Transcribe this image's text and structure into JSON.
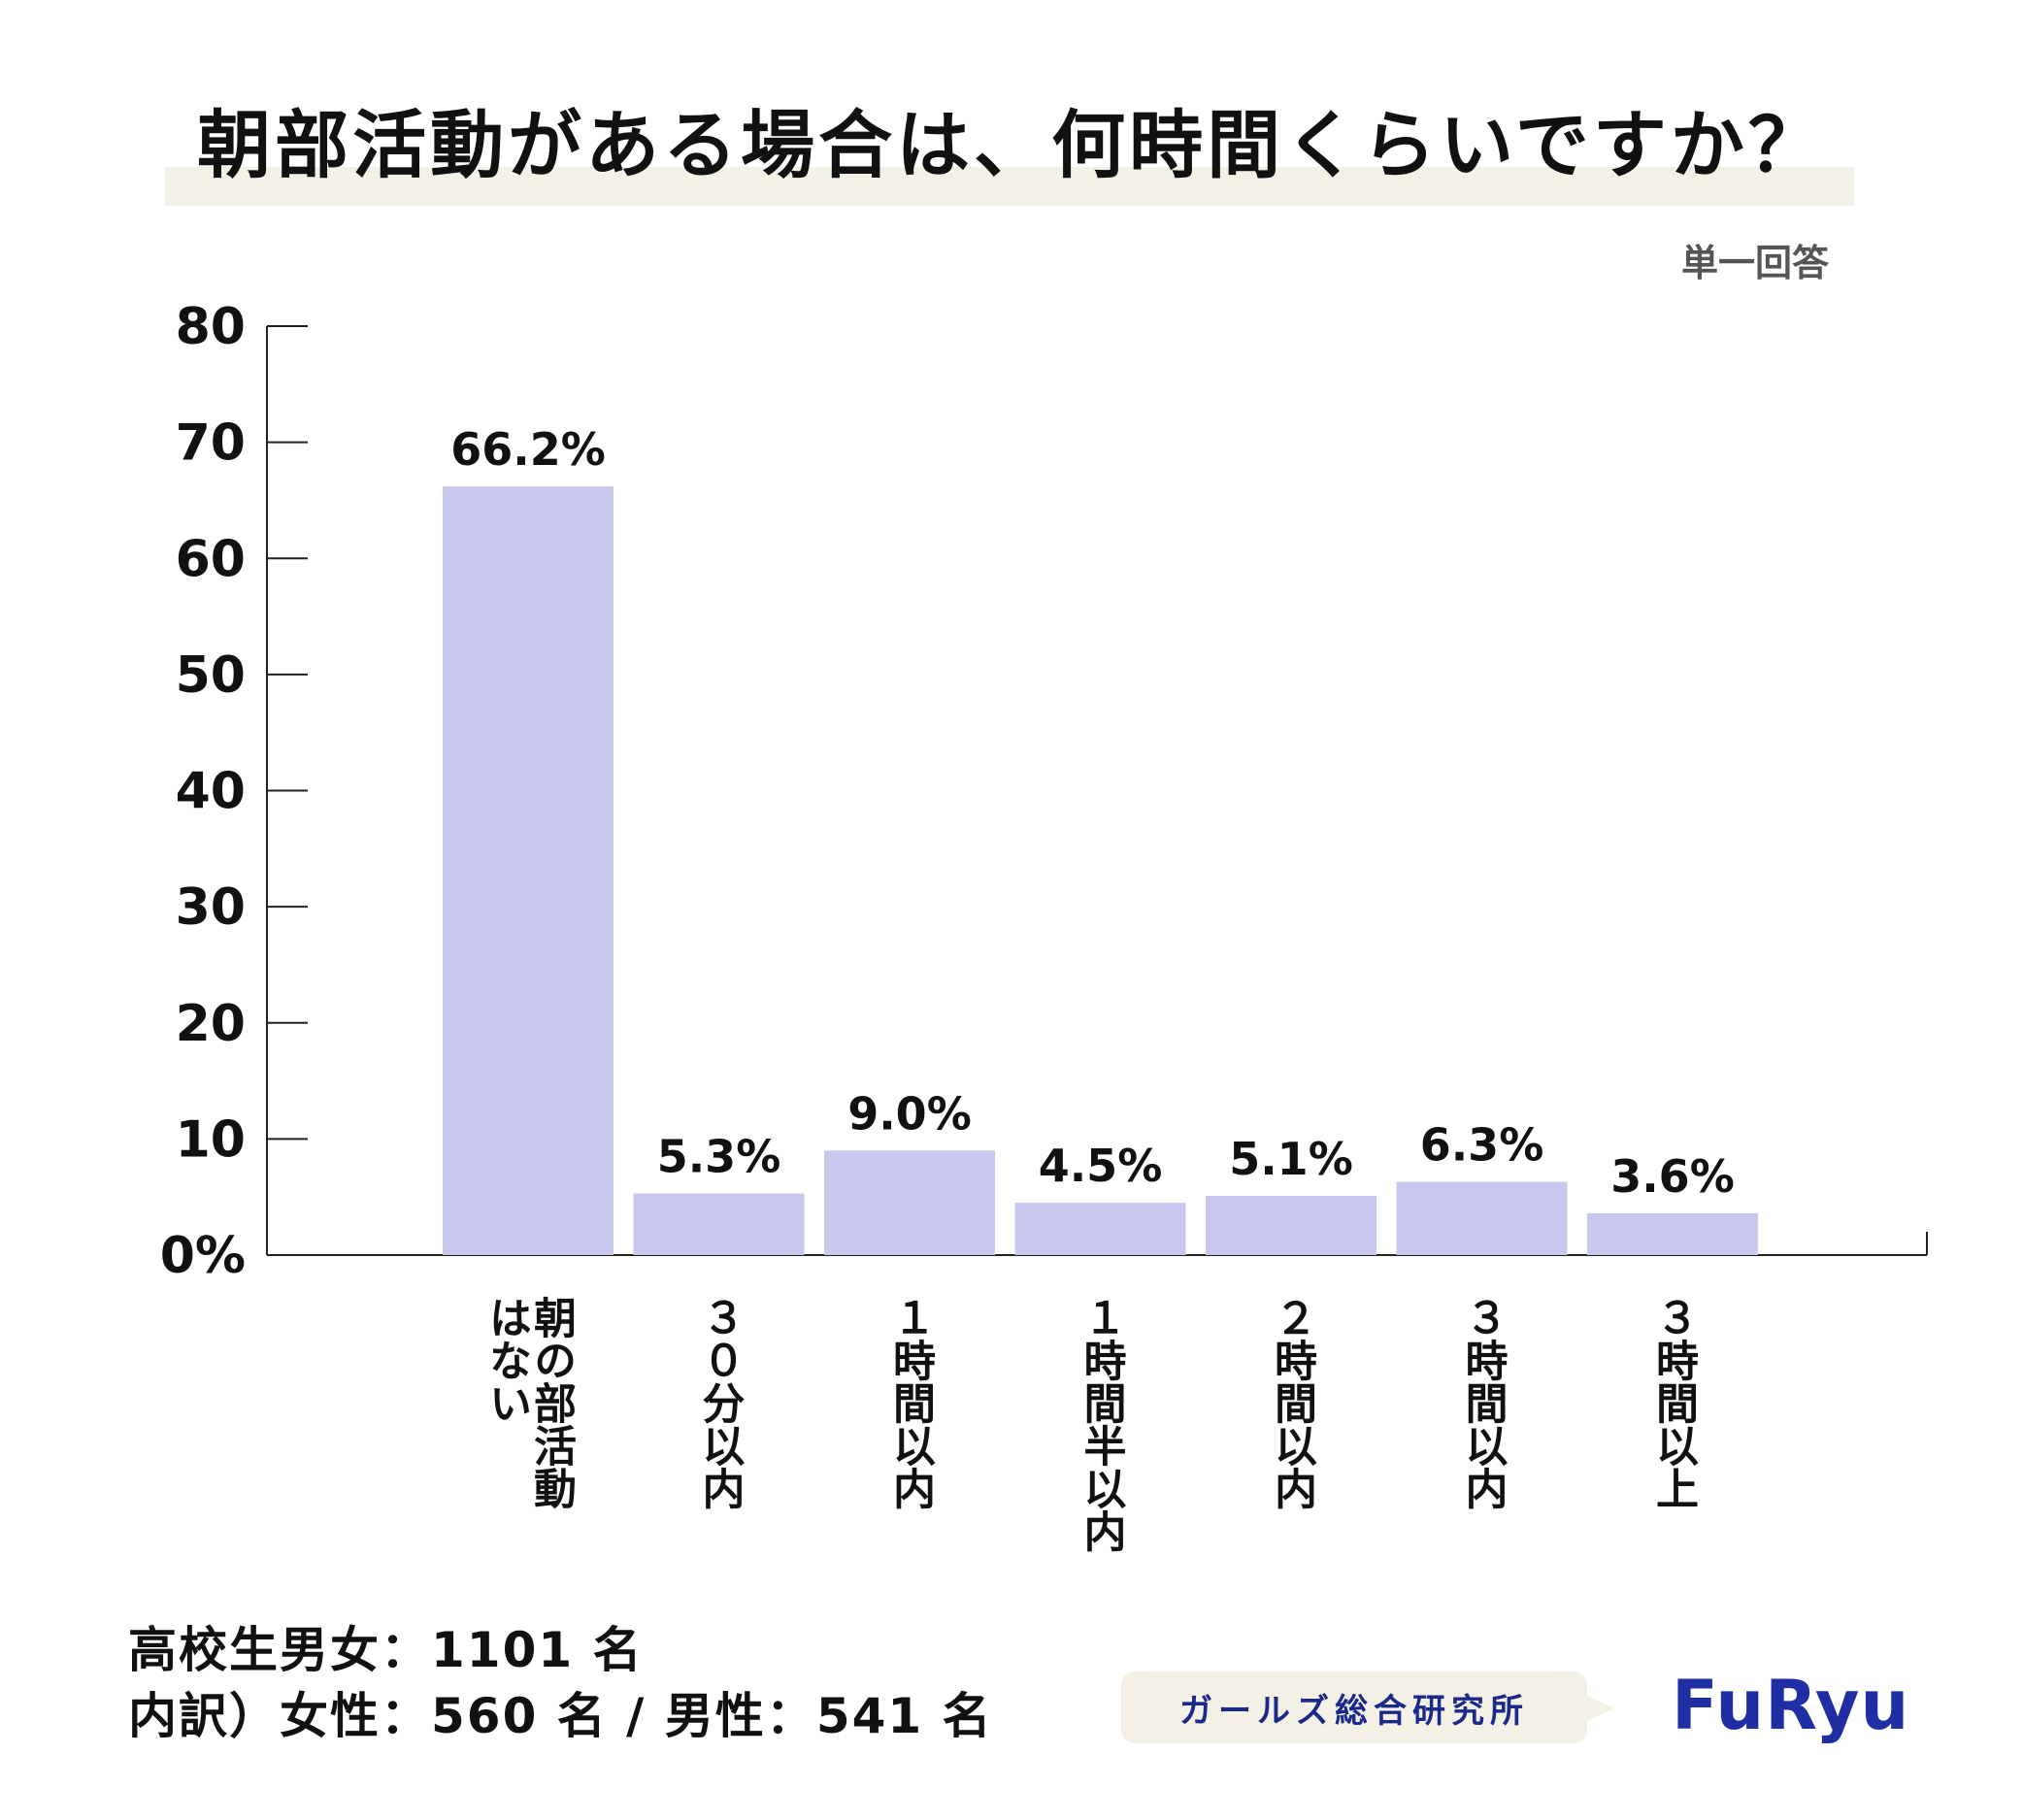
{
  "chart_data": {
    "type": "bar",
    "title": "朝部活動がある場合は、何時間くらいですか？",
    "note": "単一回答",
    "categories": [
      "朝の部活動はない",
      "３０分以内",
      "１時間以内",
      "１時間半以内",
      "２時間以内",
      "３時間以内",
      "３時間以上"
    ],
    "values": [
      66.2,
      5.3,
      9.0,
      4.5,
      5.1,
      6.3,
      3.6
    ],
    "value_labels": [
      "66.2%",
      "5.3%",
      "9.0%",
      "4.5%",
      "5.1%",
      "6.3%",
      "3.6%"
    ],
    "ylim": [
      0,
      80
    ],
    "yticks": [
      0,
      10,
      20,
      30,
      40,
      50,
      60,
      70,
      80
    ],
    "ytick_labels": [
      "0%",
      "10",
      "20",
      "30",
      "40",
      "50",
      "60",
      "70",
      "80"
    ],
    "bar_color": "#c8c8ef",
    "grid": false
  },
  "footer": {
    "line1": "高校生男女：1101 名",
    "line2": "内訳）女性：560 名 / 男性：541 名",
    "institute": "ガールズ総合研究所",
    "logo": "FuRyu"
  }
}
